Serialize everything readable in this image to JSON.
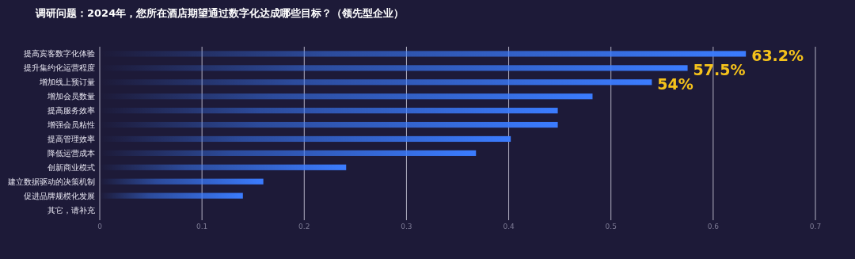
{
  "chart_data": {
    "type": "bar",
    "orientation": "horizontal",
    "title": "调研问题：2024年，您所在酒店期望通过数字化达成哪些目标？（领先型企业）",
    "categories": [
      "提高宾客数字化体验",
      "提升集约化运营程度",
      "增加线上预订量",
      "增加会员数量",
      "提高服务效率",
      "增强会员粘性",
      "提高管理效率",
      "降低运营成本",
      "创新商业模式",
      "建立数据驱动的决策机制",
      "促进品牌规模化发展",
      "其它，请补充"
    ],
    "values": [
      0.632,
      0.575,
      0.54,
      0.482,
      0.448,
      0.448,
      0.402,
      0.368,
      0.241,
      0.16,
      0.14,
      0
    ],
    "value_labels": [
      "63.2%",
      "57.5%",
      "54%",
      null,
      null,
      null,
      null,
      null,
      null,
      null,
      null,
      null
    ],
    "color": "#3b7cff",
    "xlim": [
      0,
      0.7
    ],
    "xticks": [
      0,
      0.1,
      0.2,
      0.3,
      0.4,
      0.5,
      0.6,
      0.7
    ],
    "grid": "x"
  }
}
